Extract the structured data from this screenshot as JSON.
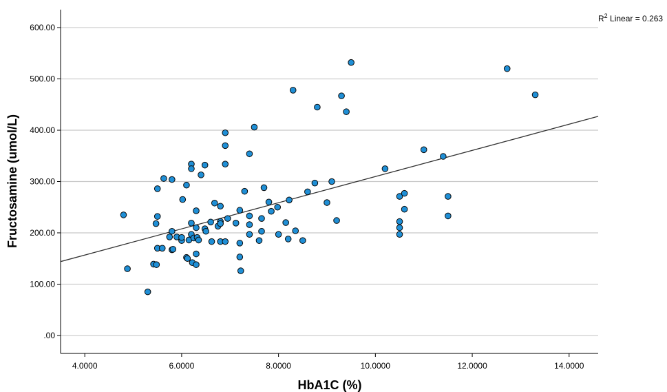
{
  "chart_data": {
    "type": "scatter",
    "title": "",
    "xlabel": "HbA1C (%)",
    "ylabel": "Fructosamine (umol/L)",
    "xlim": [
      3.5,
      14.6
    ],
    "ylim": [
      -35,
      635
    ],
    "xticks": [
      4,
      6,
      8,
      10,
      12,
      14
    ],
    "xtick_labels": [
      "4.0000",
      "6.0000",
      "8.0000",
      "10.0000",
      "12.0000",
      "14.0000"
    ],
    "yticks": [
      0,
      100,
      200,
      300,
      400,
      500,
      600
    ],
    "ytick_labels": [
      ".00",
      "100.00",
      "200.00",
      "300.00",
      "400.00",
      "500.00",
      "600.00"
    ],
    "grid": "horizontal",
    "point_color": "#1f8fd6",
    "point_edge_color": "#0a0a0a",
    "fit_line": {
      "type": "linear",
      "label_prefix": "R",
      "label_sup": "2",
      "label_suffix": " Linear = 0.263",
      "x": [
        3.5,
        14.6
      ],
      "y": [
        144,
        427
      ],
      "color": "#333333"
    },
    "points": [
      [
        4.8,
        235
      ],
      [
        4.88,
        130
      ],
      [
        5.3,
        85
      ],
      [
        5.42,
        139
      ],
      [
        5.48,
        138
      ],
      [
        5.47,
        218
      ],
      [
        5.5,
        232
      ],
      [
        5.5,
        170
      ],
      [
        5.5,
        286
      ],
      [
        5.6,
        170
      ],
      [
        5.63,
        306
      ],
      [
        5.75,
        192
      ],
      [
        5.8,
        203
      ],
      [
        5.8,
        304
      ],
      [
        5.8,
        167
      ],
      [
        5.82,
        168
      ],
      [
        5.9,
        192
      ],
      [
        6.0,
        185
      ],
      [
        6.0,
        191
      ],
      [
        6.02,
        265
      ],
      [
        6.1,
        293
      ],
      [
        6.1,
        152
      ],
      [
        6.12,
        150
      ],
      [
        6.15,
        186
      ],
      [
        6.2,
        334
      ],
      [
        6.2,
        325
      ],
      [
        6.2,
        219
      ],
      [
        6.2,
        197
      ],
      [
        6.22,
        142
      ],
      [
        6.25,
        190
      ],
      [
        6.3,
        210
      ],
      [
        6.3,
        243
      ],
      [
        6.3,
        159
      ],
      [
        6.3,
        138
      ],
      [
        6.32,
        191
      ],
      [
        6.35,
        186
      ],
      [
        6.4,
        313
      ],
      [
        6.48,
        332
      ],
      [
        6.48,
        208
      ],
      [
        6.5,
        203
      ],
      [
        6.6,
        221
      ],
      [
        6.62,
        183
      ],
      [
        6.68,
        258
      ],
      [
        6.75,
        213
      ],
      [
        6.8,
        252
      ],
      [
        6.8,
        222
      ],
      [
        6.8,
        218
      ],
      [
        6.8,
        183
      ],
      [
        6.9,
        183
      ],
      [
        6.9,
        395
      ],
      [
        6.9,
        370
      ],
      [
        6.9,
        334
      ],
      [
        6.95,
        228
      ],
      [
        7.12,
        219
      ],
      [
        7.2,
        244
      ],
      [
        7.2,
        180
      ],
      [
        7.2,
        153
      ],
      [
        7.22,
        126
      ],
      [
        7.3,
        281
      ],
      [
        7.4,
        354
      ],
      [
        7.4,
        233
      ],
      [
        7.4,
        216
      ],
      [
        7.4,
        197
      ],
      [
        7.5,
        406
      ],
      [
        7.6,
        185
      ],
      [
        7.65,
        203
      ],
      [
        7.65,
        228
      ],
      [
        7.7,
        288
      ],
      [
        7.8,
        260
      ],
      [
        7.85,
        242
      ],
      [
        7.98,
        250
      ],
      [
        8.0,
        197
      ],
      [
        8.15,
        220
      ],
      [
        8.2,
        188
      ],
      [
        8.22,
        264
      ],
      [
        8.3,
        478
      ],
      [
        8.35,
        204
      ],
      [
        8.5,
        185
      ],
      [
        8.6,
        280
      ],
      [
        8.75,
        297
      ],
      [
        8.8,
        445
      ],
      [
        9.0,
        259
      ],
      [
        9.1,
        300
      ],
      [
        9.2,
        224
      ],
      [
        9.3,
        467
      ],
      [
        9.4,
        436
      ],
      [
        9.5,
        532
      ],
      [
        10.2,
        325
      ],
      [
        10.5,
        271
      ],
      [
        10.5,
        222
      ],
      [
        10.5,
        210
      ],
      [
        10.5,
        197
      ],
      [
        10.6,
        277
      ],
      [
        10.6,
        246
      ],
      [
        11.0,
        362
      ],
      [
        11.4,
        349
      ],
      [
        11.5,
        271
      ],
      [
        11.5,
        233
      ],
      [
        12.72,
        520
      ],
      [
        13.3,
        469
      ]
    ]
  }
}
